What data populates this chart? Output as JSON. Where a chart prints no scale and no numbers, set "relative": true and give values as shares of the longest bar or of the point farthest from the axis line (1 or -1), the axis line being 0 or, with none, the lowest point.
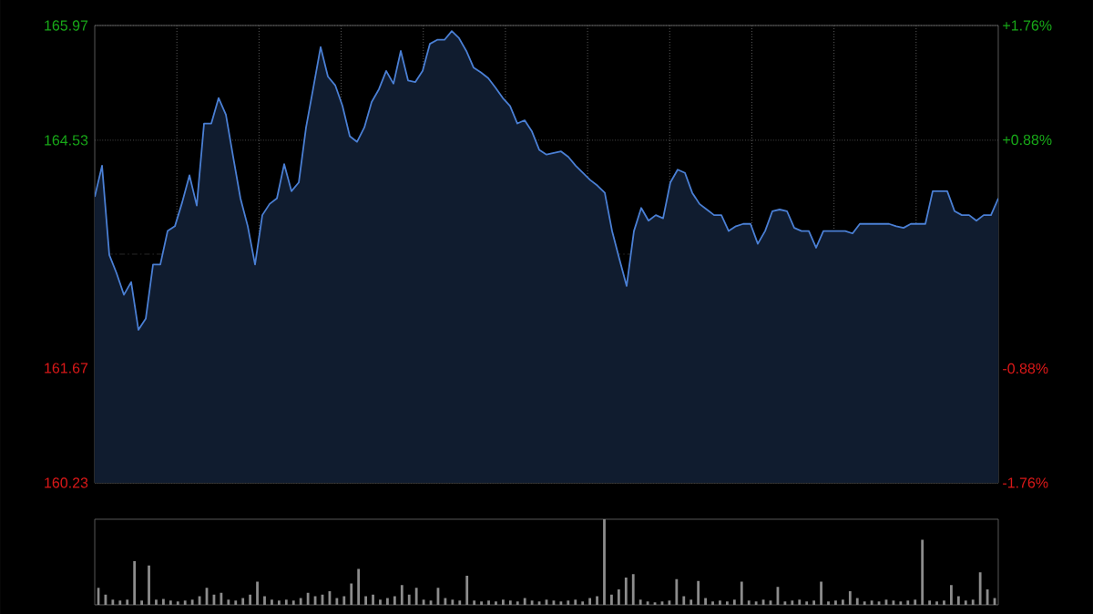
{
  "chart_data": [
    {
      "type": "area",
      "categories": [
        null,
        null,
        null,
        null,
        null,
        null,
        null,
        null,
        null,
        null,
        null,
        null,
        null,
        null,
        null,
        null,
        null,
        null,
        null,
        null,
        null,
        null,
        null,
        null,
        null,
        null,
        null,
        null,
        null,
        null,
        null,
        null,
        null,
        null,
        null,
        null,
        null,
        null,
        null,
        null,
        null,
        null,
        null,
        null,
        null,
        null,
        null,
        null,
        null,
        null,
        null,
        null,
        null,
        null,
        null,
        null,
        null,
        null,
        null,
        null,
        null,
        null,
        null,
        null,
        null,
        null,
        null,
        null,
        null,
        null,
        null,
        null,
        null,
        null,
        null,
        null,
        null,
        null,
        null,
        null,
        null,
        null,
        null,
        null,
        null,
        null,
        null,
        null,
        null,
        null,
        null,
        null,
        null,
        null,
        null,
        null,
        null,
        null,
        null,
        null,
        null,
        null,
        null,
        null,
        null,
        null,
        null,
        null,
        null,
        null,
        null,
        null,
        null,
        null,
        null,
        null,
        null,
        null,
        null,
        null,
        null,
        null,
        null,
        null,
        null
      ],
      "series": [
        {
          "color": "#4a7fd4",
          "values": [
            163.82,
            164.21,
            163.09,
            162.86,
            162.59,
            162.75,
            162.15,
            162.29,
            162.97,
            162.97,
            163.39,
            163.45,
            163.75,
            164.09,
            163.71,
            164.74,
            164.74,
            165.06,
            164.85,
            164.32,
            163.8,
            163.45,
            162.97,
            163.59,
            163.73,
            163.8,
            164.23,
            163.89,
            164.0,
            164.69,
            165.19,
            165.7,
            165.33,
            165.22,
            164.96,
            164.58,
            164.51,
            164.69,
            165.01,
            165.17,
            165.4,
            165.24,
            165.65,
            165.28,
            165.26,
            165.4,
            165.74,
            165.79,
            165.79,
            165.9,
            165.81,
            165.65,
            165.44,
            165.38,
            165.31,
            165.19,
            165.06,
            164.96,
            164.74,
            164.78,
            164.64,
            164.41,
            164.35,
            164.37,
            164.39,
            164.32,
            164.21,
            164.12,
            164.03,
            163.96,
            163.87,
            163.39,
            163.04,
            162.7,
            163.39,
            163.68,
            163.52,
            163.59,
            163.55,
            164.0,
            164.16,
            164.12,
            163.87,
            163.73,
            163.66,
            163.59,
            163.59,
            163.39,
            163.45,
            163.48,
            163.48,
            163.23,
            163.39,
            163.64,
            163.66,
            163.64,
            163.43,
            163.39,
            163.39,
            163.18,
            163.39,
            163.39,
            163.39,
            163.39,
            163.36,
            163.48,
            163.48,
            163.48,
            163.48,
            163.48,
            163.45,
            163.43,
            163.48,
            163.48,
            163.48,
            163.89,
            163.89,
            163.89,
            163.64,
            163.59,
            163.59,
            163.52,
            163.59,
            163.59,
            163.8
          ]
        }
      ],
      "ylim": [
        160.23,
        165.97
      ],
      "yticks": [
        160.23,
        161.67,
        164.53,
        165.97
      ],
      "y2lim": [
        -1.76,
        1.76
      ],
      "y2ticks": [
        {
          "value": -1.76,
          "label": "-1.76%"
        },
        {
          "value": -0.88,
          "label": "-0.88%"
        },
        {
          "value": 0.88,
          "label": "+0.88%"
        },
        {
          "value": 1.76,
          "label": "+1.76%"
        }
      ],
      "ref_lines": [
        {
          "axis": "y",
          "value": 163.1
        }
      ],
      "grid": true
    },
    {
      "type": "bar",
      "relative": true,
      "color": "#8c8c8c",
      "categories": [
        null,
        null,
        null,
        null,
        null,
        null,
        null,
        null,
        null,
        null,
        null,
        null,
        null,
        null,
        null,
        null,
        null,
        null,
        null,
        null,
        null,
        null,
        null,
        null,
        null,
        null,
        null,
        null,
        null,
        null,
        null,
        null,
        null,
        null,
        null,
        null,
        null,
        null,
        null,
        null,
        null,
        null,
        null,
        null,
        null,
        null,
        null,
        null,
        null,
        null,
        null,
        null,
        null,
        null,
        null,
        null,
        null,
        null,
        null,
        null,
        null,
        null,
        null,
        null,
        null,
        null,
        null,
        null,
        null,
        null,
        null,
        null,
        null,
        null,
        null,
        null,
        null,
        null,
        null,
        null,
        null,
        null,
        null,
        null,
        null,
        null,
        null,
        null,
        null,
        null,
        null,
        null,
        null,
        null,
        null,
        null,
        null,
        null,
        null,
        null,
        null,
        null,
        null,
        null,
        null,
        null,
        null,
        null,
        null,
        null,
        null,
        null,
        null,
        null,
        null,
        null,
        null,
        null,
        null,
        null,
        null,
        null,
        null,
        null,
        null
      ],
      "values": [
        0.2,
        0.12,
        0.06,
        0.05,
        0.06,
        0.51,
        0.05,
        0.46,
        0.06,
        0.07,
        0.05,
        0.04,
        0.05,
        0.06,
        0.1,
        0.2,
        0.12,
        0.14,
        0.06,
        0.05,
        0.08,
        0.12,
        0.27,
        0.1,
        0.06,
        0.05,
        0.06,
        0.05,
        0.08,
        0.14,
        0.1,
        0.12,
        0.16,
        0.08,
        0.1,
        0.25,
        0.42,
        0.1,
        0.12,
        0.06,
        0.08,
        0.1,
        0.23,
        0.12,
        0.2,
        0.06,
        0.05,
        0.2,
        0.08,
        0.06,
        0.05,
        0.34,
        0.05,
        0.04,
        0.05,
        0.04,
        0.06,
        0.05,
        0.04,
        0.08,
        0.05,
        0.04,
        0.06,
        0.05,
        0.04,
        0.05,
        0.06,
        0.04,
        0.08,
        0.1,
        1.0,
        0.12,
        0.18,
        0.32,
        0.36,
        0.06,
        0.04,
        0.03,
        0.04,
        0.05,
        0.3,
        0.1,
        0.06,
        0.28,
        0.08,
        0.04,
        0.05,
        0.04,
        0.06,
        0.27,
        0.05,
        0.04,
        0.06,
        0.05,
        0.21,
        0.04,
        0.05,
        0.06,
        0.04,
        0.05,
        0.27,
        0.04,
        0.05,
        0.06,
        0.16,
        0.08,
        0.04,
        0.05,
        0.04,
        0.06,
        0.05,
        0.04,
        0.05,
        0.06,
        0.76,
        0.05,
        0.04,
        0.05,
        0.23,
        0.1,
        0.05,
        0.06,
        0.38,
        0.18,
        0.08
      ]
    }
  ]
}
